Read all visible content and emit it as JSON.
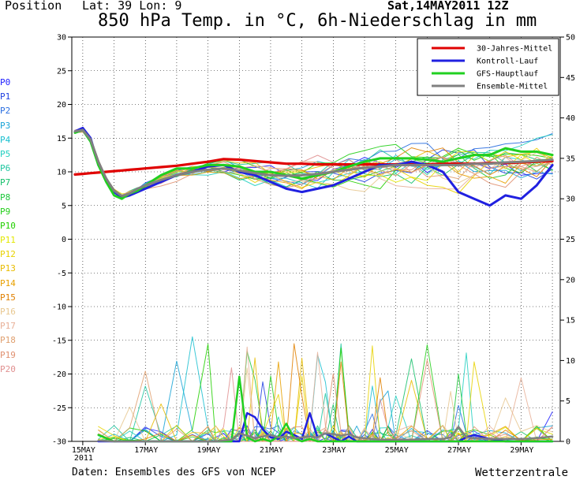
{
  "header": {
    "position_label": "Position",
    "coords": "Lat: 39 Lon: 9",
    "run_date": "Sat,14MAY2011 12Z",
    "title": "850 hPa Temp. in °C, 6h-Niederschlag in mm"
  },
  "footer": {
    "source": "Daten: Ensembles des GFS von NCEP",
    "brand": "Wetterzentrale"
  },
  "members": [
    {
      "label": "P0",
      "color": "#2020ff"
    },
    {
      "label": "P1",
      "color": "#1f3fe0"
    },
    {
      "label": "P2",
      "color": "#2a6ee0"
    },
    {
      "label": "P3",
      "color": "#17a3d6"
    },
    {
      "label": "P4",
      "color": "#1ac0d0"
    },
    {
      "label": "P5",
      "color": "#22cfc0"
    },
    {
      "label": "P6",
      "color": "#1fc6a0"
    },
    {
      "label": "P7",
      "color": "#14c06a"
    },
    {
      "label": "P8",
      "color": "#1cc83a"
    },
    {
      "label": "P9",
      "color": "#24cf1a"
    },
    {
      "label": "P10",
      "color": "#22d000"
    },
    {
      "label": "P11",
      "color": "#e3e800"
    },
    {
      "label": "P12",
      "color": "#e8d200"
    },
    {
      "label": "P13",
      "color": "#e8bc00"
    },
    {
      "label": "P14",
      "color": "#e8a000"
    },
    {
      "label": "P15",
      "color": "#e08000"
    },
    {
      "label": "P16",
      "color": "#e8c890"
    },
    {
      "label": "P17",
      "color": "#e8b098"
    },
    {
      "label": "P18",
      "color": "#e0a070"
    },
    {
      "label": "P19",
      "color": "#e09070"
    },
    {
      "label": "P20",
      "color": "#e09090"
    }
  ],
  "chart_data": {
    "type": "line",
    "title": "850 hPa Temp. in °C, 6h-Niederschlag in mm",
    "x_unit": "days from 15MAY2011",
    "xlim": [
      -0.35,
      15.25
    ],
    "x_ticks": [
      {
        "x": 0,
        "label": "15MAY",
        "sub": "2011"
      },
      {
        "x": 2,
        "label": "17MAY"
      },
      {
        "x": 4,
        "label": "19MAY"
      },
      {
        "x": 6,
        "label": "21MAY"
      },
      {
        "x": 8,
        "label": "23MAY"
      },
      {
        "x": 10,
        "label": "25MAY"
      },
      {
        "x": 12,
        "label": "27MAY"
      },
      {
        "x": 14,
        "label": "29MAY"
      }
    ],
    "y_left": {
      "label": "",
      "ylim": [
        -30,
        30
      ],
      "ticks": [
        30,
        25,
        20,
        15,
        10,
        5,
        0,
        -5,
        -10,
        -15,
        -20,
        -25,
        -30
      ]
    },
    "y_right": {
      "label": "",
      "ylim": [
        0,
        50
      ],
      "ticks": [
        50,
        45,
        40,
        35,
        30,
        25,
        20,
        15,
        10,
        5,
        0
      ]
    },
    "grid": true,
    "legend": {
      "placement": "top-right",
      "items": [
        {
          "label": "30-Jahres-Mittel",
          "color": "#e00000"
        },
        {
          "label": "Kontroll-Lauf",
          "color": "#2020e0"
        },
        {
          "label": "GFS-Hauptlauf",
          "color": "#20d020"
        },
        {
          "label": "Ensemble-Mittel",
          "color": "#808080"
        }
      ]
    },
    "temperature_x": [
      -0.25,
      0.0,
      0.25,
      0.5,
      0.75,
      1.0,
      1.25,
      1.5,
      1.75,
      2.0,
      2.5,
      3.0,
      3.5,
      4.0,
      4.5,
      5.0,
      5.5,
      6.0,
      6.5,
      7.0,
      7.5,
      8.0,
      8.5,
      9.0,
      9.5,
      10.0,
      10.5,
      11.0,
      11.5,
      12.0,
      12.5,
      13.0,
      13.5,
      14.0,
      14.5,
      15.0
    ],
    "series": [
      {
        "name": "30-Jahres-Mittel",
        "axis": "left",
        "color": "#e00000",
        "values": [
          9.6,
          9.7,
          9.8,
          9.9,
          10.0,
          10.1,
          10.2,
          10.3,
          10.4,
          10.5,
          10.7,
          10.9,
          11.2,
          11.5,
          11.9,
          11.8,
          11.6,
          11.4,
          11.2,
          11.2,
          11.1,
          11.1,
          11.1,
          11.1,
          11.1,
          11.1,
          11.1,
          11.1,
          11.2,
          11.2,
          11.2,
          11.3,
          11.3,
          11.4,
          11.5,
          11.6
        ]
      },
      {
        "name": "Kontroll-Lauf",
        "axis": "left",
        "color": "#2020e0",
        "values": [
          16.0,
          16.5,
          15.0,
          11.0,
          9.0,
          7.0,
          6.2,
          6.5,
          7.0,
          7.5,
          8.5,
          9.5,
          10.0,
          10.8,
          11.0,
          10.0,
          9.5,
          8.5,
          7.5,
          7.0,
          7.5,
          8.0,
          9.0,
          10.0,
          11.0,
          11.0,
          11.5,
          11.0,
          10.0,
          7.0,
          6.0,
          5.0,
          6.5,
          6.0,
          8.0,
          11.0
        ]
      },
      {
        "name": "GFS-Hauptlauf",
        "axis": "left",
        "color": "#20d020",
        "values": [
          15.8,
          16.2,
          14.5,
          11.0,
          8.5,
          6.5,
          6.0,
          6.8,
          7.2,
          8.0,
          9.5,
          10.5,
          10.5,
          11.0,
          11.0,
          10.8,
          10.0,
          10.0,
          9.5,
          9.0,
          9.5,
          10.0,
          10.8,
          11.5,
          12.0,
          12.0,
          12.0,
          11.8,
          11.5,
          12.0,
          12.5,
          12.5,
          13.5,
          13.0,
          13.0,
          12.5
        ]
      },
      {
        "name": "Ensemble-Mittel",
        "axis": "left",
        "color": "#808080",
        "values": [
          16.0,
          16.2,
          14.8,
          11.5,
          9.0,
          7.2,
          6.4,
          6.8,
          7.5,
          8.0,
          8.8,
          9.5,
          10.0,
          10.3,
          10.5,
          10.2,
          9.8,
          9.5,
          9.4,
          9.5,
          9.7,
          10.0,
          10.3,
          10.6,
          10.8,
          11.0,
          11.0,
          11.0,
          11.0,
          11.0,
          11.2,
          11.2,
          11.4,
          11.5,
          11.6,
          11.8
        ]
      }
    ],
    "precip_x": [
      0.5,
      1,
      1.5,
      2,
      2.5,
      3,
      3.5,
      4,
      4.25,
      4.5,
      4.75,
      5,
      5.25,
      5.5,
      5.75,
      6,
      6.25,
      6.5,
      6.75,
      7,
      7.25,
      7.5,
      7.75,
      8,
      8.25,
      8.5,
      8.75,
      9,
      9.25,
      9.5,
      9.75,
      10,
      10.5,
      11,
      11.5,
      11.75,
      12,
      12.25,
      12.5,
      13,
      13.5,
      14,
      14.5,
      15
    ],
    "precip_series": [
      {
        "name": "Kontroll-Lauf",
        "color": "#2020e0",
        "values": [
          0,
          0,
          0,
          0,
          0,
          0,
          0,
          0,
          0,
          0,
          0,
          0,
          3.5,
          3.0,
          1.5,
          0.5,
          0.3,
          1.2,
          0.8,
          0.3,
          3.5,
          0.5,
          1.0,
          0.5,
          0,
          0.6,
          0,
          0,
          0,
          0,
          0,
          0,
          0,
          0,
          0,
          0,
          0,
          0.5,
          0.8,
          0.3,
          0,
          0,
          0,
          0
        ]
      },
      {
        "name": "GFS-Hauptlauf",
        "color": "#20d020",
        "values": [
          0.8,
          0,
          0.1,
          0,
          0,
          0,
          0,
          0,
          0,
          0,
          0,
          8.0,
          0.5,
          0,
          0.3,
          0,
          0.6,
          2.2,
          0.4,
          0,
          0.3,
          0,
          0,
          0,
          0,
          0,
          0,
          0,
          0,
          0,
          0,
          0,
          0,
          0,
          0,
          0,
          0,
          0,
          0,
          0,
          0,
          0,
          0,
          0
        ]
      },
      {
        "name": "Ensemble-Mittel",
        "color": "#808080",
        "values": [
          0.1,
          0,
          0,
          0,
          0,
          0,
          0,
          0,
          0,
          0.1,
          0.2,
          1.0,
          0.7,
          0.4,
          0.6,
          0.8,
          0.5,
          0.6,
          0.4,
          0.5,
          0.6,
          0.5,
          1.0,
          0.9,
          0.7,
          0.9,
          0.5,
          0.4,
          0.3,
          0.2,
          0.2,
          0.2,
          0.2,
          0.3,
          0.3,
          0.5,
          1.8,
          0.5,
          0.4,
          0.3,
          0.3,
          0.3,
          0.4,
          0.6
        ]
      }
    ]
  }
}
